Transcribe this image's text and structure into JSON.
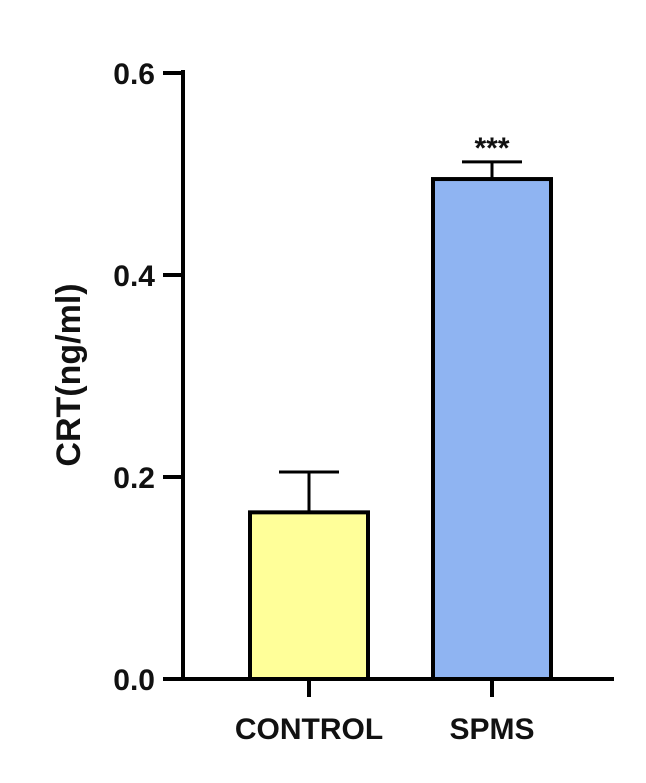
{
  "chart_data": {
    "type": "bar",
    "title": "",
    "xlabel": "",
    "ylabel": "CRT(ng/ml)",
    "ylim": [
      0,
      0.6
    ],
    "yticks": [
      0.0,
      0.2,
      0.4,
      0.6
    ],
    "ytick_labels": [
      "0.0",
      "0.2",
      "0.4",
      "0.6"
    ],
    "categories": [
      "CONTROL",
      "SPMS"
    ],
    "values": [
      0.165,
      0.495
    ],
    "error_upper": [
      0.04,
      0.017
    ],
    "significance": [
      "",
      "***"
    ],
    "bar_colors": [
      "#ffff99",
      "#8fb4f2"
    ],
    "grid": false,
    "legend": "none"
  }
}
